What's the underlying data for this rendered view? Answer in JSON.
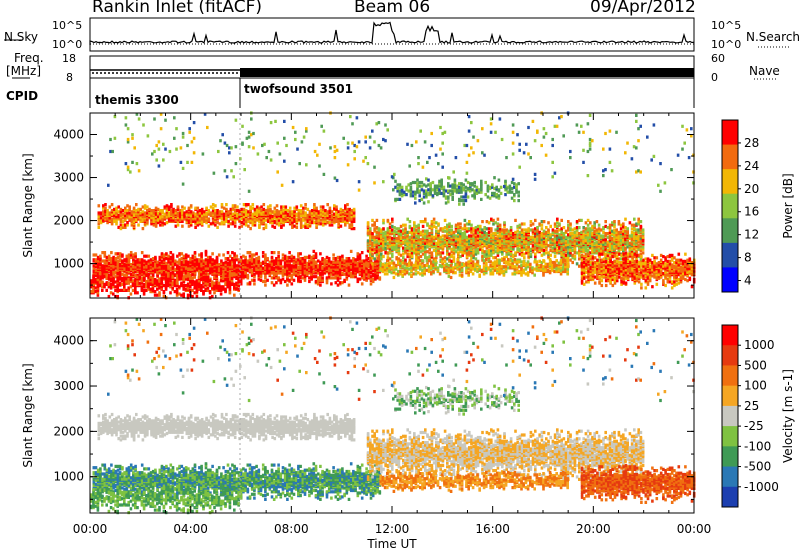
{
  "header": {
    "station": "Rankin Inlet (fitACF)",
    "beam": "Beam 06",
    "date": "09/Apr/2012"
  },
  "summary": {
    "nsky_label": "N.Sky",
    "nsearch_label": "N.Search",
    "nsky_ticks": [
      "10^5",
      "10^0"
    ],
    "nsearch_ticks": [
      "10^5",
      "10^0"
    ],
    "freq_label_1": "Freq.",
    "freq_label_2": "[MHz]",
    "freq_ticks": [
      "18",
      "8"
    ],
    "nave_label": "Nave",
    "nave_ticks": [
      "60",
      "0"
    ],
    "cpid_label": "CPID",
    "modes": [
      {
        "name": "themis 3300",
        "start": "00:00"
      },
      {
        "name": "twofsound 3501",
        "start": "06:00"
      }
    ]
  },
  "chart_data": [
    {
      "type": "heatmap",
      "quantity": "Power",
      "ylabel": "Slant Range [km]",
      "yticks": [
        1000,
        2000,
        3000,
        4000
      ],
      "ylim": [
        200,
        4500
      ],
      "xlim_hours": [
        0,
        24
      ],
      "colorbar_label": "Power [dB]",
      "colorbar_ticks": [
        "28",
        "24",
        "20",
        "16",
        "12",
        "8",
        "4"
      ],
      "colorbar_range": [
        0,
        30
      ],
      "colors": [
        "#0000ff",
        "#234ea8",
        "#4f9a55",
        "#8dc63f",
        "#f2b705",
        "#f26b0f",
        "#ff0000"
      ]
    },
    {
      "type": "heatmap",
      "quantity": "Velocity",
      "ylabel": "Slant Range [km]",
      "yticks": [
        1000,
        2000,
        3000,
        4000
      ],
      "ylim": [
        200,
        4500
      ],
      "xlim_hours": [
        0,
        24
      ],
      "xticks": [
        "00:00",
        "04:00",
        "08:00",
        "12:00",
        "16:00",
        "20:00",
        "00:00"
      ],
      "xlabel": "Time UT",
      "colorbar_label": "Velocity [m s-1]",
      "colorbar_ticks": [
        "1000",
        "500",
        "100",
        "25",
        "-25",
        "-100",
        "-500",
        "-1000"
      ],
      "colors": [
        "#1c3fb0",
        "#2a78b5",
        "#3f9a55",
        "#7fc241",
        "#c8c8c0",
        "#f5a623",
        "#f07010",
        "#e63a10",
        "#ff0000"
      ]
    }
  ]
}
